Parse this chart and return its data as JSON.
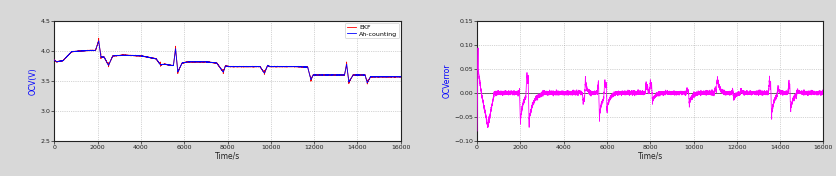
{
  "left_plot": {
    "xlabel": "Time/s",
    "ylabel": "OCV(V)",
    "xlim": [
      0,
      16000
    ],
    "ylim": [
      2.5,
      4.5
    ],
    "yticks": [
      2.5,
      3.0,
      3.5,
      4.0,
      4.5
    ],
    "xticks": [
      0,
      2000,
      4000,
      6000,
      8000,
      10000,
      12000,
      14000,
      16000
    ],
    "legend": [
      "Ah-counting",
      "EKF"
    ],
    "line_colors": [
      "blue",
      "red"
    ],
    "grid_color": "#888888",
    "bg_color": "#ffffff"
  },
  "right_plot": {
    "xlabel": "Time/s",
    "ylabel": "OCVerror",
    "xlim": [
      0,
      16000
    ],
    "ylim": [
      -0.1,
      0.15
    ],
    "yticks": [
      -0.1,
      -0.05,
      0.0,
      0.05,
      0.1,
      0.15
    ],
    "xticks": [
      0,
      2000,
      4000,
      6000,
      8000,
      10000,
      12000,
      14000,
      16000
    ],
    "line_color": "magenta",
    "grid_color": "#888888",
    "bg_color": "#ffffff"
  },
  "outer_bg": "#d8d8d8",
  "spine_color": "#222222",
  "tick_color": "#222222"
}
